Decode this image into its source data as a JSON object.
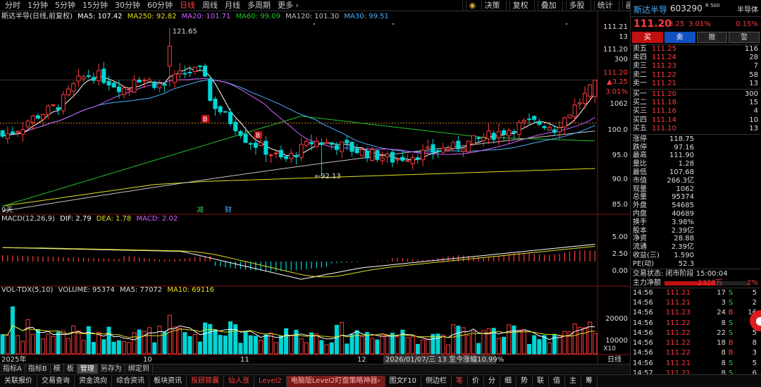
{
  "topbar": {
    "periods": [
      "分时",
      "1分钟",
      "5分钟",
      "15分钟",
      "30分钟",
      "60分钟",
      "日线",
      "周线",
      "月线",
      "多周期",
      "更多 ›"
    ],
    "active_period": "日线",
    "tools": [
      "决策",
      "复权",
      "叠加",
      "多股",
      "统计",
      "画线",
      "F10",
      "标记",
      "-自选",
      "返回"
    ]
  },
  "legend": {
    "title": "斯达半导(日线,前复权)",
    "ma5": "MA5: 107.42",
    "ma250": "MA250: 92.82",
    "ma20": "MA20: 101.71",
    "ma60": "MA60: 99.09",
    "ma120": "MA120: 101.30",
    "ma30": "MA30: 99.51",
    "macd_name": "MACD(12,26,9)",
    "dif": "DIF: 2.79",
    "dea": "DEA: 1.78",
    "macd": "MACD: 2.02",
    "vol_name": "VOL-TDX(5,10)",
    "volume": "VOLUME: 95374",
    "vma5": "MA5: 77072",
    "vma10": "MA10: 69116"
  },
  "colors": {
    "up": "#ff3b3b",
    "down": "#00d5d5",
    "ma5": "#ffffff",
    "ma20": "#d060ff",
    "ma60": "#22c22a",
    "ma120": "#c0c0c0",
    "ma30": "#4ab0ff",
    "ma250": "#e0e020",
    "dea": "#e0e020"
  },
  "axis": {
    "price_labels": [
      "111.21",
      "13",
      "111.20",
      "300",
      "111.20",
      "▲3.25",
      "3.01%",
      "1062",
      "100.0",
      "95.0",
      "90.0",
      "85.0"
    ],
    "macd_labels": [
      "5.00",
      "2.50",
      "0.00"
    ],
    "vol_labels": [
      "20000",
      "10000"
    ],
    "vol_unit": "X10",
    "date_labels": [
      "2025年",
      "10",
      "11",
      "12"
    ],
    "crosshair_info": "2026/01/07/三  13 至今涨幅10.99%",
    "period_label": "日线"
  },
  "annotations": {
    "high": "121.65",
    "low": "←92.13",
    "b1": "B",
    "b2": "B",
    "jian": "减",
    "cai": "财",
    "days": "9天"
  },
  "chart_data": {
    "type": "candlestick",
    "title": "斯达半导(日线,前复权)",
    "high_label": 121.65,
    "low_label": 92.13,
    "last_close": 111.2,
    "ylim": [
      85,
      121.65
    ],
    "x_labels": [
      "2025年",
      "10",
      "11",
      "12"
    ],
    "moving_averages": {
      "MA5": 107.42,
      "MA20": 101.71,
      "MA30": 99.51,
      "MA60": 99.09,
      "MA120": 101.3,
      "MA250": 92.82
    },
    "macd": {
      "DIF": 2.79,
      "DEA": 1.78,
      "MACD": 2.02,
      "ylim": [
        -2.5,
        5.0
      ]
    },
    "volume": {
      "VOLUME": 95374,
      "MA5": 77072,
      "MA10": 69116,
      "unit": "X10"
    }
  },
  "sidepanel": {
    "name": "斯达半导",
    "code": "603290",
    "rtag": "R 500",
    "sector": "半导体",
    "price": "111.20",
    "change": "3.25",
    "pct": "3.01%",
    "sector_pct": "0.15%",
    "btn_buy": "买",
    "btn_sell": "卖",
    "btn_cancel": "撤",
    "btn_alert": "警",
    "asks": [
      {
        "label": "卖五",
        "price": "111.25",
        "vol": "116"
      },
      {
        "label": "卖四",
        "price": "111.24",
        "vol": "28"
      },
      {
        "label": "卖三",
        "price": "111.23",
        "vol": "7"
      },
      {
        "label": "卖二",
        "price": "111.22",
        "vol": "58"
      },
      {
        "label": "卖一",
        "price": "111.21",
        "vol": "13"
      }
    ],
    "bids": [
      {
        "label": "买一",
        "price": "111.20",
        "vol": "300"
      },
      {
        "label": "买二",
        "price": "111.18",
        "vol": "15"
      },
      {
        "label": "买三",
        "price": "111.16",
        "vol": "4"
      },
      {
        "label": "买四",
        "price": "111.14",
        "vol": "10"
      },
      {
        "label": "买五",
        "price": "111.10",
        "vol": "13"
      }
    ],
    "stats": [
      {
        "k": "涨停",
        "v": "118.75",
        "c": "red"
      },
      {
        "k": "跌停",
        "v": "97.16",
        "c": "green"
      },
      {
        "k": "最高",
        "v": "111.90",
        "c": "red"
      },
      {
        "k": "量比",
        "v": "1.28",
        "c": "red"
      },
      {
        "k": "最低",
        "v": "107.68",
        "c": "green"
      },
      {
        "k": "市值",
        "v": "266.3亿",
        "c": ""
      },
      {
        "k": "现量",
        "v": "1062",
        "c": "purple"
      },
      {
        "k": "总量",
        "v": "95374",
        "c": ""
      },
      {
        "k": "外盘",
        "v": "54685",
        "c": "red"
      },
      {
        "k": "内盘",
        "v": "40689",
        "c": "green"
      },
      {
        "k": "换手",
        "v": "3.98%",
        "c": ""
      },
      {
        "k": "股本",
        "v": "2.39亿",
        "c": ""
      },
      {
        "k": "净资",
        "v": "28.88",
        "c": ""
      },
      {
        "k": "流通",
        "v": "2.39亿",
        "c": ""
      },
      {
        "k": "收益(三)",
        "v": "1.590",
        "c": ""
      },
      {
        "k": "PE(动)",
        "v": "52.3",
        "c": ""
      }
    ],
    "state": "交易状态: 闭市阶段 15:00:04",
    "mainflow_label": "主力净额",
    "mainflow_amount": "2328万",
    "mainflow_pct": "2%",
    "mainflow_level": 0.6,
    "ticks": [
      {
        "t": "14:56",
        "p": "111.21",
        "v": "17",
        "d": "S",
        "n": "5"
      },
      {
        "t": "14:56",
        "p": "111.21",
        "v": "3",
        "d": "S",
        "n": "2"
      },
      {
        "t": "14:56",
        "p": "111.23",
        "v": "24",
        "d": "B",
        "n": "16"
      },
      {
        "t": "14:56",
        "p": "111.22",
        "v": "8",
        "d": "S",
        "n": "3"
      },
      {
        "t": "14:56",
        "p": "111.22",
        "v": "22",
        "d": "S",
        "n": "5"
      },
      {
        "t": "14:56",
        "p": "111.22",
        "v": "18",
        "d": "B",
        "n": "8"
      },
      {
        "t": "14:56",
        "p": "111.22",
        "v": "8",
        "d": "B",
        "n": "3"
      },
      {
        "t": "14:56",
        "p": "111.21",
        "v": "8",
        "d": "S",
        "n": "5"
      },
      {
        "t": "14:57",
        "p": "111.21",
        "v": "8",
        "d": "S",
        "n": "6"
      },
      {
        "t": "15:00",
        "p": "111.20",
        "v": "1062",
        "d": "",
        "n": "266"
      }
    ]
  },
  "bottomtabs": [
    "指标A",
    "指标B",
    "模",
    "板",
    "管理",
    "另存为",
    "绑定到"
  ],
  "statusbar": [
    "关联报价",
    "交易查询",
    "资金流向",
    "综合资讯",
    "板块资讯",
    "投顾锦囊",
    "仙人涨",
    "Level2",
    "电脑版Level2盯盘策略神器›",
    "图文F10",
    "侧边栏",
    "笔",
    "价",
    "分",
    "细",
    "势",
    "联",
    "值",
    "主",
    "筹"
  ]
}
